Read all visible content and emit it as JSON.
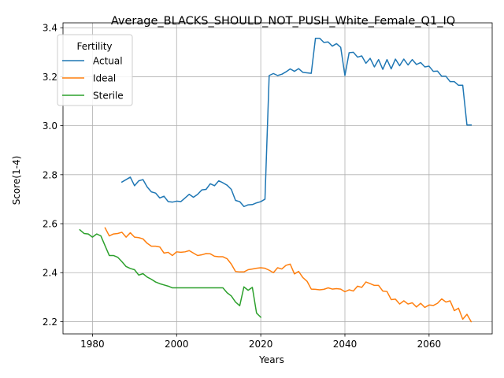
{
  "chart_data": {
    "type": "line",
    "title": "Average_BLACKS_SHOULD_NOT_PUSH_White_Female_Q1_IQ",
    "xlabel": "Years",
    "ylabel": "Score(1-4)",
    "xlim": [
      1973,
      2075
    ],
    "ylim": [
      2.15,
      3.42
    ],
    "xticks": [
      1980,
      2000,
      2020,
      2040,
      2060
    ],
    "yticks": [
      2.2,
      2.4,
      2.6,
      2.8,
      3.0,
      3.2,
      3.4
    ],
    "grid": true,
    "legend": {
      "title": "Fertility",
      "placement": "upper-left"
    },
    "series": [
      {
        "name": "Actual",
        "color": "#1f77b4",
        "x": [
          1987,
          1988,
          1989,
          1990,
          1991,
          1992,
          1993,
          1994,
          1995,
          1996,
          1997,
          1998,
          1999,
          2000,
          2001,
          2002,
          2003,
          2004,
          2005,
          2006,
          2007,
          2008,
          2009,
          2010,
          2011,
          2012,
          2013,
          2014,
          2015,
          2016,
          2017,
          2018,
          2019,
          2020,
          2021,
          2022,
          2023,
          2024,
          2025,
          2026,
          2027,
          2028,
          2029,
          2030,
          2031,
          2032,
          2033,
          2034,
          2035,
          2036,
          2037,
          2038,
          2039,
          2040,
          2041,
          2042,
          2043,
          2044,
          2045,
          2046,
          2047,
          2048,
          2049,
          2050,
          2051,
          2052,
          2053,
          2054,
          2055,
          2056,
          2057,
          2058,
          2059,
          2060,
          2061,
          2062,
          2063,
          2064,
          2065,
          2066,
          2067,
          2068,
          2069,
          2070
        ],
        "values": [
          2.77,
          2.78,
          2.79,
          2.755,
          2.775,
          2.78,
          2.75,
          2.73,
          2.725,
          2.705,
          2.712,
          2.69,
          2.688,
          2.692,
          2.69,
          2.705,
          2.72,
          2.708,
          2.72,
          2.738,
          2.74,
          2.763,
          2.755,
          2.775,
          2.767,
          2.757,
          2.74,
          2.695,
          2.69,
          2.67,
          2.677,
          2.678,
          2.685,
          2.69,
          2.7,
          3.205,
          3.213,
          3.205,
          3.21,
          3.22,
          3.232,
          3.222,
          3.233,
          3.218,
          3.216,
          3.214,
          3.357,
          3.357,
          3.34,
          3.342,
          3.325,
          3.335,
          3.32,
          3.205,
          3.298,
          3.3,
          3.28,
          3.285,
          3.255,
          3.275,
          3.24,
          3.27,
          3.23,
          3.27,
          3.232,
          3.272,
          3.245,
          3.272,
          3.248,
          3.27,
          3.25,
          3.258,
          3.24,
          3.243,
          3.222,
          3.223,
          3.202,
          3.202,
          3.18,
          3.18,
          3.165,
          3.165,
          3.003,
          3.003
        ]
      },
      {
        "name": "Ideal",
        "color": "#ff7f0e",
        "x": [
          1983,
          1984,
          1985,
          1986,
          1987,
          1988,
          1989,
          1990,
          1991,
          1992,
          1993,
          1994,
          1995,
          1996,
          1997,
          1998,
          1999,
          2000,
          2001,
          2002,
          2003,
          2004,
          2005,
          2006,
          2007,
          2008,
          2009,
          2010,
          2011,
          2012,
          2013,
          2014,
          2015,
          2016,
          2017,
          2018,
          2019,
          2020,
          2021,
          2022,
          2023,
          2024,
          2025,
          2026,
          2027,
          2028,
          2029,
          2030,
          2031,
          2032,
          2033,
          2034,
          2035,
          2036,
          2037,
          2038,
          2039,
          2040,
          2041,
          2042,
          2043,
          2044,
          2045,
          2046,
          2047,
          2048,
          2049,
          2050,
          2051,
          2052,
          2053,
          2054,
          2055,
          2056,
          2057,
          2058,
          2059,
          2060,
          2061,
          2062,
          2063,
          2064,
          2065,
          2066,
          2067,
          2068,
          2069,
          2070
        ],
        "values": [
          2.583,
          2.55,
          2.558,
          2.56,
          2.565,
          2.545,
          2.563,
          2.545,
          2.543,
          2.538,
          2.52,
          2.508,
          2.508,
          2.505,
          2.48,
          2.483,
          2.47,
          2.485,
          2.483,
          2.485,
          2.49,
          2.48,
          2.47,
          2.473,
          2.478,
          2.477,
          2.467,
          2.465,
          2.465,
          2.457,
          2.435,
          2.405,
          2.403,
          2.403,
          2.412,
          2.415,
          2.418,
          2.42,
          2.418,
          2.41,
          2.4,
          2.42,
          2.415,
          2.43,
          2.435,
          2.395,
          2.405,
          2.38,
          2.365,
          2.333,
          2.332,
          2.33,
          2.332,
          2.338,
          2.333,
          2.335,
          2.333,
          2.322,
          2.33,
          2.325,
          2.345,
          2.34,
          2.362,
          2.355,
          2.348,
          2.348,
          2.325,
          2.323,
          2.29,
          2.292,
          2.272,
          2.285,
          2.272,
          2.277,
          2.26,
          2.275,
          2.258,
          2.268,
          2.266,
          2.275,
          2.293,
          2.28,
          2.285,
          2.245,
          2.255,
          2.21,
          2.23,
          2.2
        ]
      },
      {
        "name": "Sterile",
        "color": "#2ca02c",
        "x": [
          1977,
          1978,
          1979,
          1980,
          1981,
          1982,
          1983,
          1984,
          1985,
          1986,
          1987,
          1988,
          1989,
          1990,
          1991,
          1992,
          1993,
          1994,
          1995,
          1996,
          1997,
          1998,
          1999,
          2000,
          2001,
          2002,
          2003,
          2004,
          2005,
          2006,
          2007,
          2008,
          2009,
          2010,
          2011,
          2012,
          2013,
          2014,
          2015,
          2016,
          2017,
          2018,
          2019,
          2020
        ],
        "values": [
          2.575,
          2.56,
          2.558,
          2.545,
          2.558,
          2.55,
          2.51,
          2.47,
          2.47,
          2.463,
          2.445,
          2.425,
          2.417,
          2.412,
          2.39,
          2.396,
          2.382,
          2.373,
          2.362,
          2.355,
          2.35,
          2.345,
          2.338,
          2.338,
          2.338,
          2.338,
          2.338,
          2.338,
          2.338,
          2.338,
          2.338,
          2.338,
          2.338,
          2.338,
          2.338,
          2.318,
          2.305,
          2.28,
          2.265,
          2.342,
          2.328,
          2.34,
          2.235,
          2.218
        ]
      }
    ]
  }
}
